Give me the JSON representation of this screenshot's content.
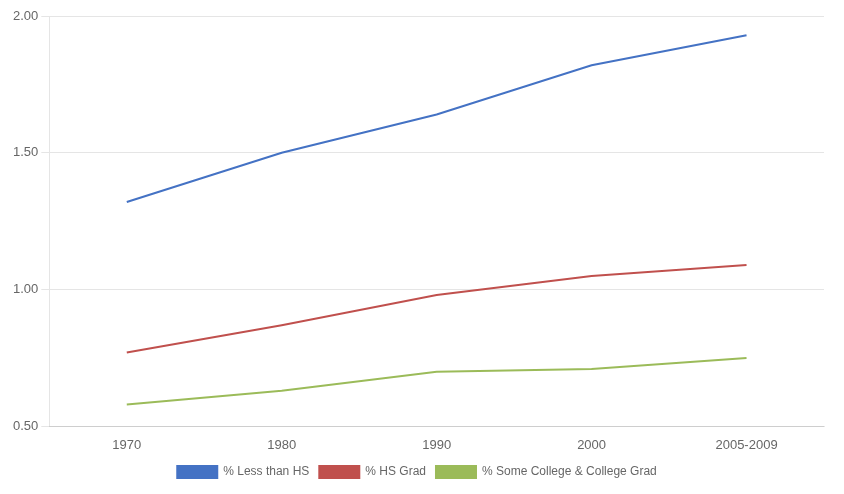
{
  "chart_data": {
    "type": "line",
    "categories": [
      "1970",
      "1980",
      "1990",
      "2000",
      "2005-2009"
    ],
    "series": [
      {
        "name": "% Less than HS",
        "color": "#4472C4",
        "values": [
          1.32,
          1.5,
          1.64,
          1.82,
          1.93
        ]
      },
      {
        "name": "% HS Grad",
        "color": "#C0504D",
        "values": [
          0.77,
          0.87,
          0.98,
          1.05,
          1.09
        ]
      },
      {
        "name": "% Some College & College Grad",
        "color": "#9BBB59",
        "values": [
          0.58,
          0.63,
          0.7,
          0.71,
          0.75
        ]
      }
    ],
    "ylim": [
      0.5,
      2.0
    ],
    "yticks": [
      {
        "value": 0.5,
        "label": "0.50"
      },
      {
        "value": 1.0,
        "label": "1.00"
      },
      {
        "value": 1.5,
        "label": "1.50"
      },
      {
        "value": 2.0,
        "label": "2.00"
      }
    ],
    "grid": true,
    "legend": "bottom"
  }
}
